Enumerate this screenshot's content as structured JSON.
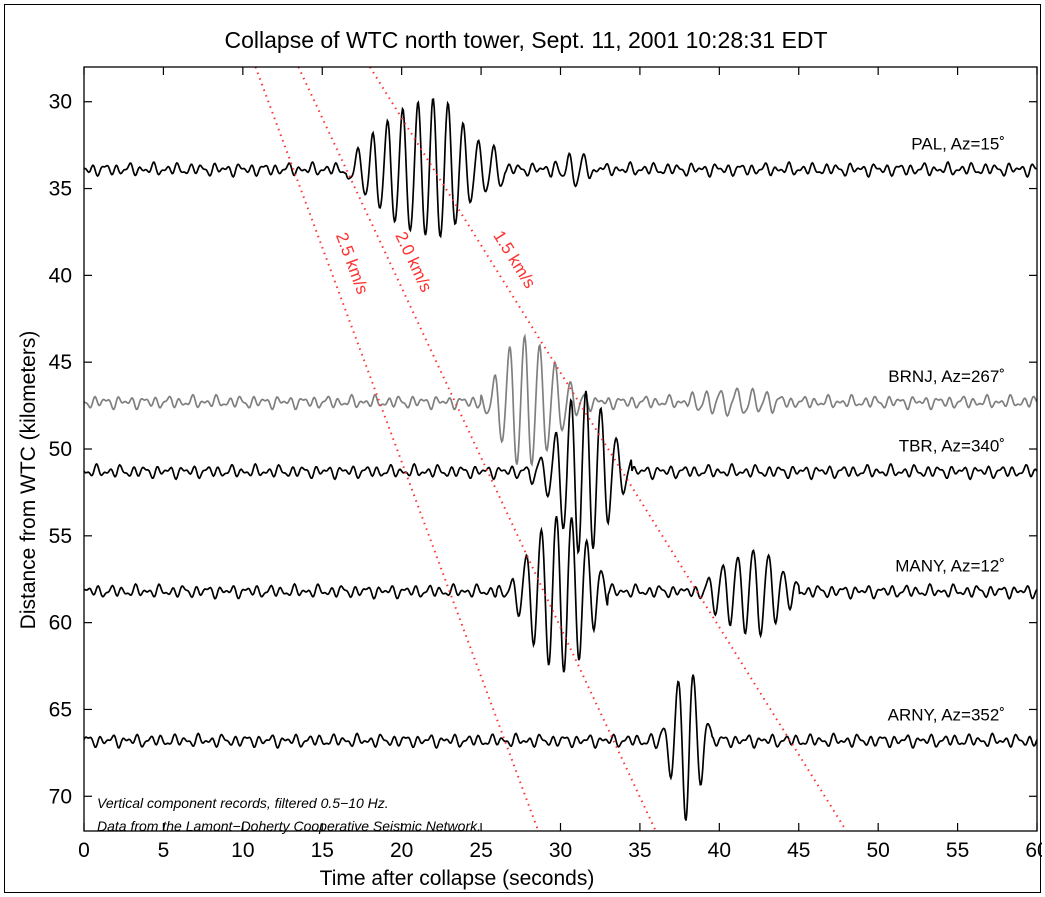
{
  "chart_data": {
    "type": "line",
    "title": "Collapse of WTC north tower, Sept. 11, 2001 10:28:31 EDT",
    "xlabel": "Time after collapse (seconds)",
    "ylabel": "Distance from WTC (kilometers)",
    "xlim": [
      0,
      60
    ],
    "ylim": [
      72,
      28
    ],
    "y_inverted": true,
    "xticks": [
      0,
      5,
      10,
      15,
      20,
      25,
      30,
      35,
      40,
      45,
      50,
      55,
      60
    ],
    "yticks": [
      30,
      35,
      40,
      45,
      50,
      55,
      60,
      65,
      70
    ],
    "xtick_labels": [
      "0",
      "5",
      "10",
      "15",
      "20",
      "25",
      "30",
      "35",
      "40",
      "45",
      "50",
      "55",
      "60"
    ],
    "ytick_labels": [
      "30",
      "35",
      "40",
      "45",
      "50",
      "55",
      "60",
      "65",
      "70"
    ],
    "grid": false,
    "series": [
      {
        "name": "PAL, Az=15˚",
        "distance_km": 33.9,
        "color": "#000000",
        "bursts": [
          {
            "t0": 16.5,
            "t1": 26.5,
            "amp": 4.0,
            "center": 21.5
          },
          {
            "t0": 29.5,
            "t1": 33.5,
            "amp": 0.8,
            "center": 31
          }
        ]
      },
      {
        "name": "BRNJ, Az=267˚",
        "distance_km": 47.3,
        "color": "#7f7f7f",
        "bursts": [
          {
            "t0": 25,
            "t1": 33,
            "amp": 3.8,
            "center": 28
          },
          {
            "t0": 38,
            "t1": 46,
            "amp": 0.8,
            "center": 41
          }
        ]
      },
      {
        "name": "TBR, Az=340˚",
        "distance_km": 51.3,
        "color": "#000000",
        "bursts": [
          {
            "t0": 28,
            "t1": 34.5,
            "amp": 4.6,
            "center": 31.5
          }
        ]
      },
      {
        "name": "MANY, Az=12˚",
        "distance_km": 58.2,
        "color": "#000000",
        "bursts": [
          {
            "t0": 26,
            "t1": 33,
            "amp": 4.8,
            "center": 30
          },
          {
            "t0": 36,
            "t1": 45,
            "amp": 2.6,
            "center": 42
          }
        ]
      },
      {
        "name": "ARNY, Az=352˚",
        "distance_km": 66.8,
        "color": "#000000",
        "bursts": [
          {
            "t0": 33.5,
            "t1": 39.5,
            "amp": 4.6,
            "center": 38
          }
        ]
      }
    ],
    "velocity_lines": [
      {
        "label": "2.5 km/s",
        "x_top": 10.8,
        "x_bottom": 28.6,
        "color": "#ff3030",
        "style": "dotted"
      },
      {
        "label": "2.0 km/s",
        "x_top": 13.5,
        "x_bottom": 36.0,
        "color": "#ff3030",
        "style": "dotted"
      },
      {
        "label": "1.5 km/s",
        "x_top": 18.0,
        "x_bottom": 48.0,
        "color": "#ff3030",
        "style": "dotted"
      }
    ],
    "annotations": [
      "Vertical component records, filtered 0.5−10 Hz.",
      "Data from the Lamont−Doherty Cooperative Seismic Network."
    ]
  }
}
